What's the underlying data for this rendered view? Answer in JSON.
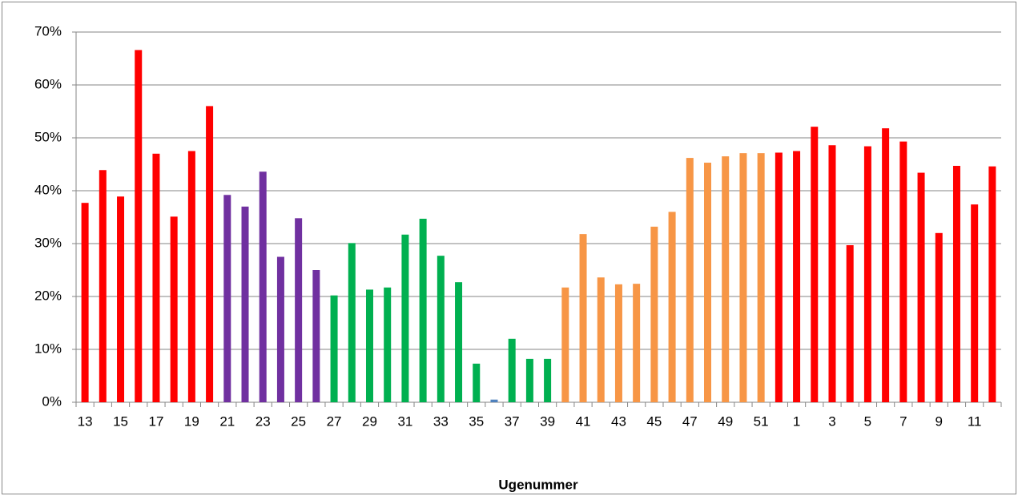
{
  "chart_data": {
    "type": "bar",
    "x_label": "Ugenummer",
    "categories": [
      "13",
      null,
      "15",
      null,
      "17",
      null,
      "19",
      null,
      "21",
      null,
      "23",
      null,
      "25",
      null,
      "27",
      null,
      "29",
      null,
      "31",
      null,
      "33",
      null,
      "35",
      null,
      "37",
      null,
      "39",
      null,
      "41",
      null,
      "43",
      null,
      "45",
      null,
      "47",
      null,
      "49",
      null,
      "51",
      null,
      "1",
      null,
      "3",
      null,
      "5",
      null,
      "7",
      null,
      "9",
      null,
      "11",
      null
    ],
    "values": [
      37.7,
      43.9,
      38.9,
      66.6,
      47,
      35.1,
      47.5,
      56,
      39.2,
      37,
      43.6,
      27.5,
      34.8,
      25,
      20.2,
      30.1,
      21.3,
      21.7,
      31.7,
      34.7,
      27.7,
      22.7,
      7.3,
      0.5,
      12,
      8.2,
      8.2,
      21.7,
      31.8,
      23.6,
      22.3,
      22.4,
      33.2,
      36,
      46.2,
      45.3,
      46.5,
      47.1,
      47.1,
      47.2,
      47.5,
      52.1,
      48.6,
      29.7,
      48.4,
      51.8,
      49.3,
      43.4,
      32,
      44.7,
      37.4,
      44.6
    ],
    "colors": [
      "#ff0000",
      "#ff0000",
      "#ff0000",
      "#ff0000",
      "#ff0000",
      "#ff0000",
      "#ff0000",
      "#ff0000",
      "#7030a0",
      "#7030a0",
      "#7030a0",
      "#7030a0",
      "#7030a0",
      "#7030a0",
      "#00b050",
      "#00b050",
      "#00b050",
      "#00b050",
      "#00b050",
      "#00b050",
      "#00b050",
      "#00b050",
      "#00b050",
      "#4f81bd",
      "#00b050",
      "#00b050",
      "#00b050",
      "#f79646",
      "#f79646",
      "#f79646",
      "#f79646",
      "#f79646",
      "#f79646",
      "#f79646",
      "#f79646",
      "#f79646",
      "#f79646",
      "#f79646",
      "#f79646",
      "#ff0000",
      "#ff0000",
      "#ff0000",
      "#ff0000",
      "#ff0000",
      "#ff0000",
      "#ff0000",
      "#ff0000",
      "#ff0000",
      "#ff0000",
      "#ff0000",
      "#ff0000",
      "#ff0000"
    ],
    "ylim": [
      0,
      70
    ],
    "yticks": [
      {
        "value": 0,
        "label": "0%"
      },
      {
        "value": 10,
        "label": "10%"
      },
      {
        "value": 20,
        "label": "20%"
      },
      {
        "value": 30,
        "label": "30%"
      },
      {
        "value": 40,
        "label": "40%"
      },
      {
        "value": 50,
        "label": "50%"
      },
      {
        "value": 60,
        "label": "60%"
      },
      {
        "value": 70,
        "label": "70%"
      }
    ],
    "grid": true
  }
}
